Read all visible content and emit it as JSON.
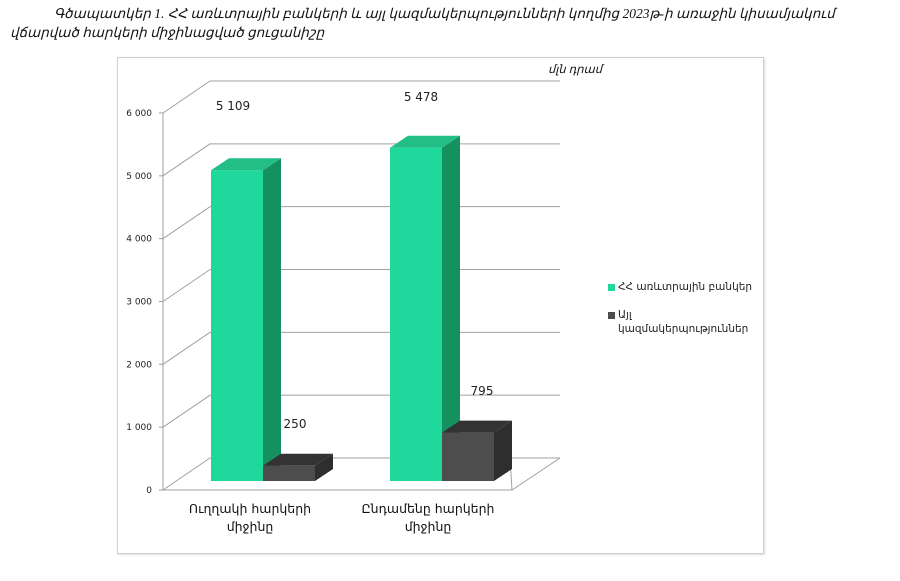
{
  "caption": "Գծապատկեր 1. ՀՀ առևտրային բանկերի և այլ կազմակերպությունների կողմից 2023թ-ի առաջին կիսամյակում վճարված հարկերի միջինացված ցուցանիշը",
  "chart_data": {
    "type": "bar",
    "unit_label": "մլն դրամ",
    "categories": [
      "Ուղղակի հարկերի միջինը",
      "Ընդամենը հարկերի միջինը"
    ],
    "category_lines": [
      [
        "Ուղղակի հարկերի",
        "միջինը"
      ],
      [
        "Ընդամենը հարկերի",
        "միջինը"
      ]
    ],
    "series": [
      {
        "name": "ՀՀ առևտրային բանկեր",
        "values": [
          5109,
          5478
        ],
        "labels": [
          "5 109",
          "5 478"
        ],
        "color": "#1fd89c",
        "side": "#15905f",
        "top": "#22be86"
      },
      {
        "name": "Այլ կազմակերպություններ",
        "values": [
          250,
          795
        ],
        "labels": [
          "250",
          "795"
        ],
        "color": "#4d4d4d",
        "side": "#2e2e2e",
        "top": "#333333"
      }
    ],
    "legend_lines": [
      [
        "ՀՀ առևտրային բանկեր"
      ],
      [
        "Այլ",
        "կազմակերպություններ"
      ]
    ],
    "ylim": [
      0,
      6000
    ],
    "yticks": [
      "0",
      "1 000",
      "2 000",
      "3 000",
      "4 000",
      "5 000",
      "6 000"
    ],
    "grid": true,
    "legend_position": "right"
  }
}
